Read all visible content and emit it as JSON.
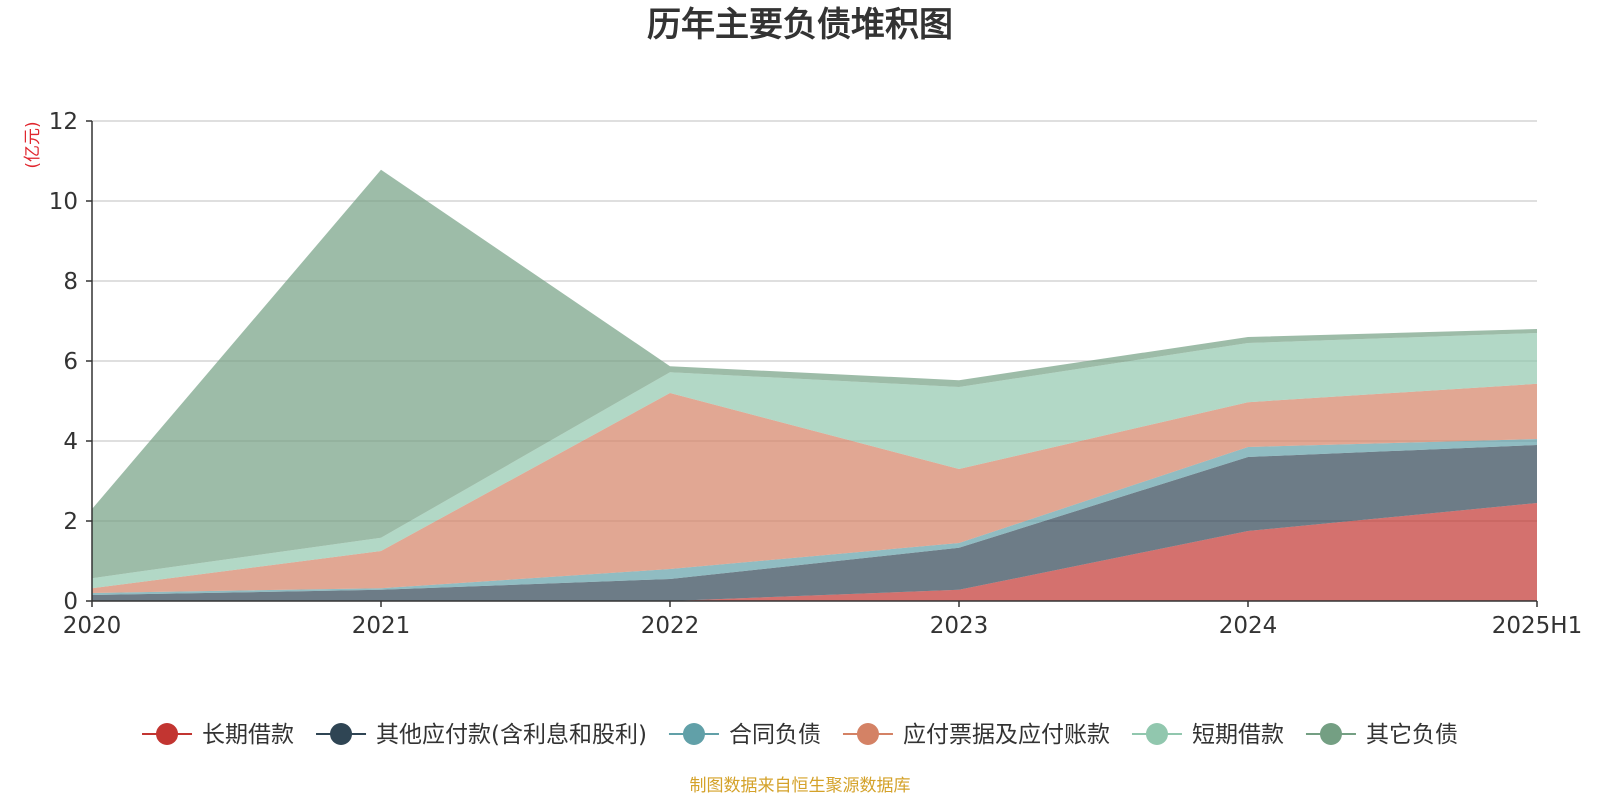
{
  "chart_data": {
    "type": "area",
    "stacked": true,
    "title": "历年主要负债堆积图",
    "unit_label": "(亿元)",
    "source_note": "制图数据来自恒生聚源数据库",
    "categories": [
      "2020",
      "2021",
      "2022",
      "2023",
      "2024",
      "2025H1"
    ],
    "ylim": [
      0,
      12
    ],
    "yticks": [
      0,
      2,
      4,
      6,
      8,
      10,
      12
    ],
    "grid": true,
    "legend_position": "bottom",
    "series": [
      {
        "name": "长期借款",
        "color": "#c23531",
        "values": [
          0,
          0,
          0,
          0.28,
          1.75,
          2.45
        ]
      },
      {
        "name": "其他应付款(含利息和股利)",
        "color": "#2f4554",
        "values": [
          0.15,
          0.28,
          0.55,
          1.05,
          1.85,
          1.45
        ]
      },
      {
        "name": "合同负债",
        "color": "#61a0a8",
        "values": [
          0.05,
          0.04,
          0.25,
          0.12,
          0.25,
          0.15
        ]
      },
      {
        "name": "应付票据及应付账款",
        "color": "#d48265",
        "values": [
          0.12,
          0.93,
          4.4,
          1.85,
          1.12,
          1.38
        ]
      },
      {
        "name": "短期借款",
        "color": "#91c7ae",
        "values": [
          0.25,
          0.33,
          0.52,
          2.05,
          1.48,
          1.27
        ]
      },
      {
        "name": "其它负债",
        "color": "#749f83",
        "values": [
          1.73,
          9.2,
          0.15,
          0.17,
          0.15,
          0.1
        ]
      }
    ]
  }
}
